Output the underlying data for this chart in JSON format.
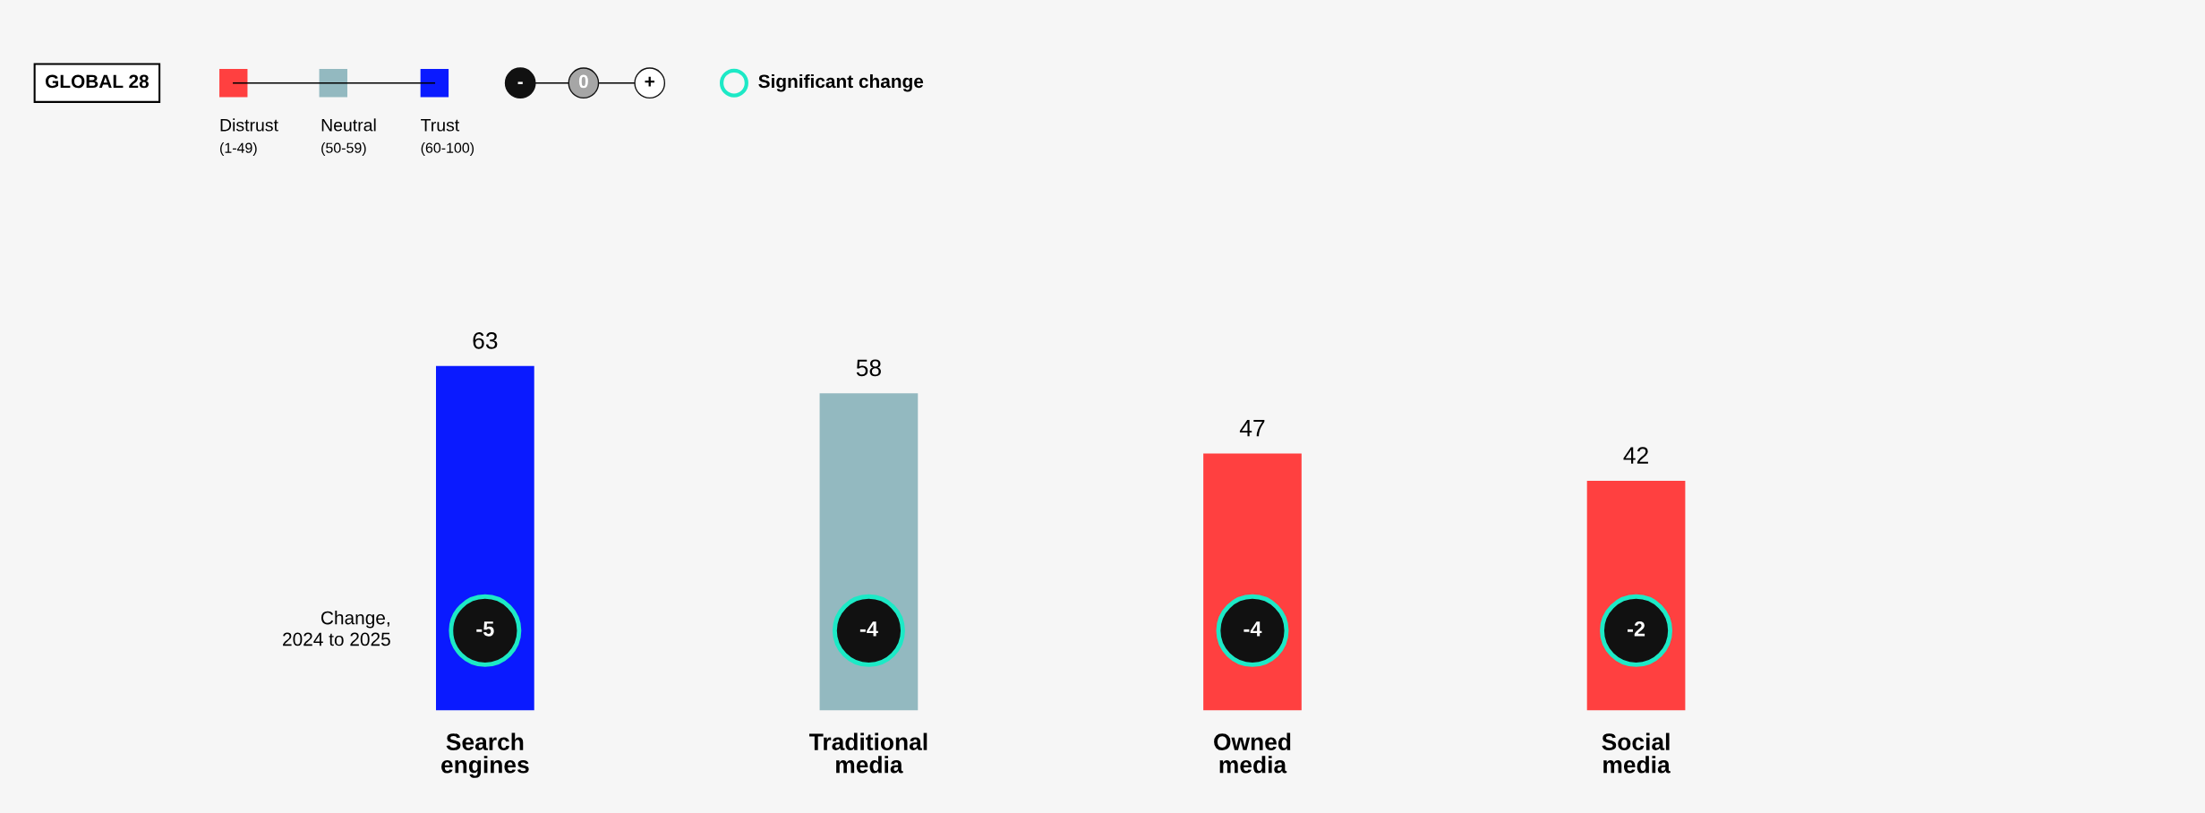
{
  "chart_data": {
    "type": "bar",
    "categories": [
      "Search engines",
      "Traditional media",
      "Owned media",
      "Social media"
    ],
    "values": [
      63,
      58,
      47,
      42
    ],
    "colors": [
      "#0a1aff",
      "#93b9c0",
      "#ff4040",
      "#ff4040"
    ],
    "data_labels": true,
    "annotations": [
      "GLOBAL 28",
      "Distrust",
      "(1-49)",
      "Neutral",
      "(50-59)",
      "Trust",
      "(60-100)",
      "-",
      "0",
      "+",
      "Significant change",
      "Change,\n2024 to 2025",
      "-5",
      "-4",
      "-4",
      "-2"
    ]
  }
}
